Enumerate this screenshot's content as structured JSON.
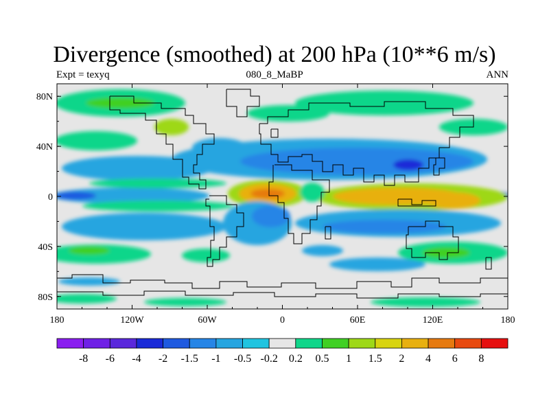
{
  "title": "Divergence (smoothed) at 200 hPa (10**6 m/s)",
  "subtitle_left": "Expt = texyq",
  "subtitle_center": "080_8_MaBP",
  "subtitle_right": "ANN",
  "x_ticks": [
    {
      "value": -180,
      "label": "180"
    },
    {
      "value": -120,
      "label": "120W"
    },
    {
      "value": -60,
      "label": "60W"
    },
    {
      "value": 0,
      "label": "0"
    },
    {
      "value": 60,
      "label": "60E"
    },
    {
      "value": 120,
      "label": "120E"
    },
    {
      "value": 180,
      "label": "180"
    }
  ],
  "y_ticks": [
    {
      "value": 80,
      "label": "80N"
    },
    {
      "value": 40,
      "label": "40N"
    },
    {
      "value": 0,
      "label": "0"
    },
    {
      "value": -40,
      "label": "40S"
    },
    {
      "value": -80,
      "label": "80S"
    }
  ],
  "colorbar": {
    "colors": [
      "#8a1ef0",
      "#6f20e6",
      "#5a28dc",
      "#1a2ad8",
      "#1f5ae0",
      "#2685e6",
      "#26a5e0",
      "#20c4e0",
      "#e6e6e6",
      "#10d68a",
      "#40d024",
      "#9ed818",
      "#d8d410",
      "#e8b010",
      "#e67a10",
      "#e84a10",
      "#e61010"
    ],
    "labels": [
      "-8",
      "-6",
      "-4",
      "-2",
      "-1.5",
      "-1",
      "-0.5",
      "-0.2",
      "0.2",
      "0.5",
      "1",
      "1.5",
      "2",
      "4",
      "6",
      "8"
    ]
  },
  "map_data": {
    "variable": "Divergence (smoothed)",
    "level_hpa": 200,
    "units": "10**6 m/s",
    "lon_range": [
      -180,
      180
    ],
    "lat_range": [
      -90,
      90
    ],
    "features": [
      {
        "type": "positive",
        "level": "1",
        "lon": -100,
        "lat": 60,
        "rx": 60,
        "ry": 10
      },
      {
        "type": "positive",
        "level": "1",
        "lon": 80,
        "lat": 60,
        "rx": 70,
        "ry": 10
      },
      {
        "type": "negative",
        "level": "-1",
        "lon": 40,
        "lat": 25,
        "rx": 120,
        "ry": 15
      },
      {
        "type": "negative",
        "level": "-2",
        "lon": 100,
        "lat": 25,
        "rx": 12,
        "ry": 5
      },
      {
        "type": "negative",
        "level": "-1",
        "lon": -130,
        "lat": 0,
        "rx": 50,
        "ry": 5
      },
      {
        "type": "negative",
        "level": "-1.5",
        "lon": -170,
        "lat": 0,
        "rx": 10,
        "ry": 3
      },
      {
        "type": "negative",
        "level": "-1.5",
        "lon": 170,
        "lat": 0,
        "rx": 12,
        "ry": 3
      },
      {
        "type": "positive",
        "level": "4",
        "lon": -10,
        "lat": 0,
        "rx": 25,
        "ry": 8
      },
      {
        "type": "positive",
        "level": "6",
        "lon": -10,
        "lat": 0,
        "rx": 10,
        "ry": 3
      },
      {
        "type": "positive",
        "level": "2",
        "lon": 80,
        "lat": 0,
        "rx": 50,
        "ry": 7
      },
      {
        "type": "positive",
        "level": "2",
        "lon": 120,
        "lat": 0,
        "rx": 30,
        "ry": 7
      },
      {
        "type": "negative",
        "level": "-1",
        "lon": -110,
        "lat": -20,
        "rx": 60,
        "ry": 15
      },
      {
        "type": "negative",
        "level": "-1",
        "lon": -20,
        "lat": -20,
        "rx": 35,
        "ry": 20
      },
      {
        "type": "negative",
        "level": "-1",
        "lon": 70,
        "lat": -20,
        "rx": 80,
        "ry": 15
      },
      {
        "type": "positive",
        "level": "1",
        "lon": -100,
        "lat": -50,
        "rx": 50,
        "ry": 8
      },
      {
        "type": "positive",
        "level": "1",
        "lon": 80,
        "lat": -60,
        "rx": 40,
        "ry": 6
      }
    ]
  }
}
